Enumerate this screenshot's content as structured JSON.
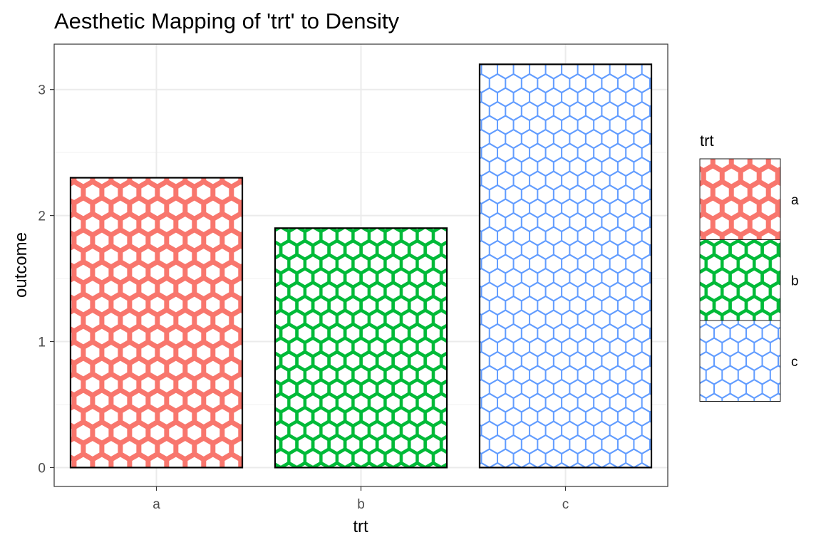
{
  "chart_data": {
    "type": "bar",
    "title": "Aesthetic Mapping of 'trt' to Density",
    "xlabel": "trt",
    "ylabel": "outcome",
    "categories": [
      "a",
      "b",
      "c"
    ],
    "values": [
      2.3,
      1.9,
      3.2
    ],
    "ylim": [
      -0.15,
      3.36
    ],
    "yticks": [
      0,
      1,
      2,
      3
    ],
    "grid": true,
    "fill_pattern": "hexagon",
    "colors": [
      "#F8766D",
      "#00BA38",
      "#619CFF"
    ],
    "pattern_density": [
      "low",
      "medium",
      "high"
    ],
    "legend": {
      "title": "trt",
      "entries": [
        "a",
        "b",
        "c"
      ],
      "placement": "right"
    }
  }
}
